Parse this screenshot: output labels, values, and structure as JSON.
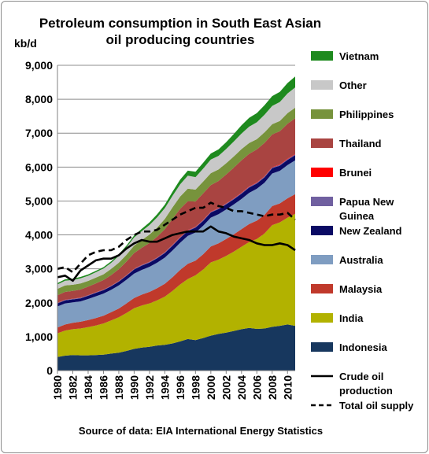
{
  "chart_data": {
    "type": "area",
    "title": [
      "Petroleum consumption in South East Asian",
      "oil producing countries"
    ],
    "ylabel": "kb/d",
    "ylim": [
      0,
      9000
    ],
    "yticks": [
      "0",
      "1,000",
      "2,000",
      "3,000",
      "4,000",
      "5,000",
      "6,000",
      "7,000",
      "8,000",
      "9,000"
    ],
    "x": [
      1980,
      1981,
      1982,
      1983,
      1984,
      1985,
      1986,
      1987,
      1988,
      1989,
      1990,
      1991,
      1992,
      1993,
      1994,
      1995,
      1996,
      1997,
      1998,
      1999,
      2000,
      2001,
      2002,
      2003,
      2004,
      2005,
      2006,
      2007,
      2008,
      2009,
      2010,
      2011
    ],
    "xticks": [
      "1980",
      "1982",
      "1984",
      "1986",
      "1988",
      "1990",
      "1992",
      "1994",
      "1996",
      "1998",
      "2000",
      "2002",
      "2004",
      "2006",
      "2008",
      "2010"
    ],
    "stacked_series": [
      {
        "name": "Indonesia",
        "color": "#17375E",
        "values": [
          400,
          440,
          460,
          450,
          450,
          460,
          470,
          500,
          530,
          580,
          640,
          680,
          700,
          740,
          760,
          800,
          860,
          930,
          900,
          960,
          1030,
          1080,
          1120,
          1170,
          1220,
          1260,
          1230,
          1240,
          1290,
          1320,
          1360,
          1320
        ]
      },
      {
        "name": "India",
        "color": "#B2B200",
        "values": [
          700,
          740,
          760,
          790,
          830,
          870,
          920,
          980,
          1040,
          1120,
          1200,
          1240,
          1280,
          1330,
          1420,
          1550,
          1680,
          1770,
          1910,
          2020,
          2160,
          2190,
          2260,
          2340,
          2430,
          2530,
          2650,
          2800,
          3000,
          3050,
          3150,
          3300
        ]
      },
      {
        "name": "Malaysia",
        "color": "#C0392B",
        "values": [
          170,
          180,
          190,
          200,
          210,
          220,
          230,
          240,
          260,
          280,
          300,
          320,
          340,
          360,
          380,
          400,
          430,
          450,
          430,
          450,
          470,
          480,
          500,
          510,
          520,
          530,
          540,
          550,
          560,
          560,
          570,
          580
        ]
      },
      {
        "name": "Australia",
        "color": "#7F9DC1",
        "values": [
          620,
          620,
          600,
          600,
          620,
          640,
          650,
          660,
          680,
          700,
          720,
          730,
          740,
          750,
          770,
          790,
          800,
          820,
          830,
          840,
          850,
          860,
          870,
          880,
          890,
          920,
          940,
          950,
          960,
          960,
          980,
          1000
        ]
      },
      {
        "name": "New Zealand",
        "color": "#0A0A64",
        "values": [
          90,
          90,
          90,
          90,
          95,
          100,
          100,
          105,
          110,
          115,
          120,
          125,
          125,
          130,
          135,
          140,
          140,
          145,
          145,
          145,
          150,
          150,
          150,
          150,
          155,
          155,
          155,
          155,
          155,
          150,
          150,
          150
        ]
      },
      {
        "name": "Papua New Guinea",
        "color": "#7060A0",
        "values": [
          15,
          15,
          15,
          15,
          15,
          15,
          15,
          15,
          15,
          15,
          18,
          18,
          18,
          18,
          18,
          20,
          20,
          20,
          20,
          20,
          20,
          20,
          22,
          22,
          22,
          24,
          24,
          25,
          25,
          25,
          25,
          25
        ]
      },
      {
        "name": "Brunei",
        "color": "#FF0000",
        "values": [
          5,
          5,
          5,
          5,
          5,
          5,
          5,
          6,
          6,
          6,
          8,
          8,
          8,
          8,
          8,
          10,
          10,
          10,
          10,
          10,
          10,
          10,
          10,
          12,
          12,
          12,
          12,
          12,
          12,
          14,
          14,
          14
        ]
      },
      {
        "name": "Thailand",
        "color": "#A94441",
        "values": [
          220,
          230,
          230,
          240,
          250,
          260,
          280,
          310,
          350,
          400,
          460,
          500,
          550,
          610,
          680,
          760,
          830,
          850,
          740,
          780,
          780,
          800,
          850,
          900,
          950,
          960,
          970,
          980,
          960,
          980,
          1030,
          1050
        ]
      },
      {
        "name": "Philippines",
        "color": "#77933C",
        "values": [
          190,
          190,
          180,
          180,
          170,
          170,
          170,
          180,
          190,
          200,
          220,
          230,
          250,
          270,
          300,
          340,
          360,
          370,
          350,
          350,
          350,
          340,
          330,
          330,
          330,
          320,
          300,
          310,
          300,
          300,
          310,
          310
        ]
      },
      {
        "name": "Other",
        "color": "#C8C8C8",
        "values": [
          130,
          140,
          140,
          150,
          150,
          160,
          170,
          180,
          200,
          220,
          240,
          260,
          280,
          300,
          320,
          340,
          360,
          380,
          370,
          380,
          400,
          400,
          420,
          440,
          460,
          480,
          500,
          520,
          540,
          560,
          580,
          600
        ]
      },
      {
        "name": "Vietnam",
        "color": "#1E8A1E",
        "values": [
          40,
          40,
          40,
          40,
          40,
          40,
          40,
          45,
          45,
          50,
          60,
          70,
          80,
          90,
          100,
          120,
          140,
          150,
          160,
          170,
          180,
          190,
          200,
          220,
          240,
          260,
          270,
          280,
          290,
          300,
          310,
          320
        ]
      }
    ],
    "line_series": [
      {
        "name": "Crude oil production",
        "color": "#000000",
        "dash": "solid",
        "values": [
          2750,
          2800,
          2650,
          2950,
          3100,
          3250,
          3300,
          3300,
          3400,
          3600,
          3750,
          3850,
          3800,
          3800,
          3900,
          4000,
          4050,
          4100,
          4100,
          4100,
          4250,
          4100,
          4050,
          3950,
          3900,
          3850,
          3750,
          3700,
          3700,
          3750,
          3700,
          3550
        ]
      },
      {
        "name": "Total oil supply",
        "color": "#000000",
        "dash": "dashed",
        "values": [
          3000,
          3050,
          2900,
          3150,
          3400,
          3500,
          3550,
          3550,
          3650,
          3850,
          4000,
          4100,
          4100,
          4150,
          4300,
          4450,
          4600,
          4700,
          4800,
          4800,
          4950,
          4850,
          4800,
          4700,
          4700,
          4650,
          4600,
          4550,
          4600,
          4600,
          4650,
          4450
        ]
      }
    ],
    "legend": [
      "Vietnam",
      "Other",
      "Philippines",
      "Thailand",
      "Brunei",
      "Papua New Guinea",
      "New Zealand",
      "Australia",
      "Malaysia",
      "India",
      "Indonesia",
      "Crude oil production",
      "Total oil supply"
    ],
    "legend_lines": [
      [
        "Vietnam"
      ],
      [
        "Other"
      ],
      [
        "Philippines"
      ],
      [
        "Thailand"
      ],
      [
        "Brunei"
      ],
      [
        "Papua New",
        "Guinea"
      ],
      [
        "New Zealand"
      ],
      [
        "Australia"
      ],
      [
        "Malaysia"
      ],
      [
        "India"
      ],
      [
        "Indonesia"
      ],
      [
        "Crude oil",
        "production"
      ],
      [
        "Total oil supply"
      ]
    ],
    "legend_placement": "right",
    "grid": "horizontal",
    "source": "Source of data: EIA International Energy Statistics"
  }
}
